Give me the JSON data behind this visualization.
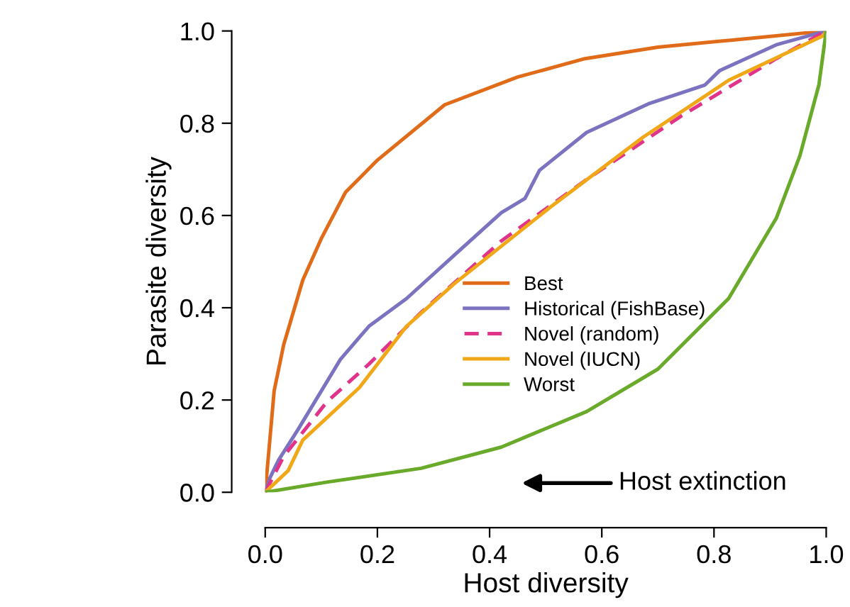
{
  "chart_data": {
    "type": "line",
    "xlabel": "Host diversity",
    "ylabel": "Parasite diversity",
    "xlim": [
      0,
      1
    ],
    "ylim": [
      0,
      1
    ],
    "xticks": [
      {
        "value": 0,
        "label": "0.0"
      },
      {
        "value": 0.2,
        "label": "0.2"
      },
      {
        "value": 0.4,
        "label": "0.4"
      },
      {
        "value": 0.6,
        "label": "0.6"
      },
      {
        "value": 0.8,
        "label": "0.8"
      },
      {
        "value": 1,
        "label": "1.0"
      }
    ],
    "yticks": [
      {
        "value": 0,
        "label": "0.0"
      },
      {
        "value": 0.2,
        "label": "0.2"
      },
      {
        "value": 0.4,
        "label": "0.4"
      },
      {
        "value": 0.6,
        "label": "0.6"
      },
      {
        "value": 0.8,
        "label": "0.8"
      },
      {
        "value": 1,
        "label": "1.0"
      }
    ],
    "grid": false,
    "legend": "center",
    "marker": "none",
    "annotations": [
      "Host extinction"
    ],
    "series": [
      {
        "name": "Best",
        "color": "#e06c1a",
        "x": [
          0,
          0.008,
          0.016,
          0.033,
          0.067,
          0.1,
          0.143,
          0.2,
          0.32,
          0.45,
          0.57,
          0.7,
          0.83,
          1
        ],
        "values": [
          0,
          0.11,
          0.22,
          0.32,
          0.46,
          0.55,
          0.65,
          0.72,
          0.84,
          0.9,
          0.94,
          0.965,
          0.98,
          1
        ]
      },
      {
        "name": "Historical (FishBase)",
        "color": "#7b72c0",
        "x": [
          0,
          0.008,
          0.024,
          0.058,
          0.134,
          0.185,
          0.252,
          0.337,
          0.421,
          0.463,
          0.489,
          0.573,
          0.683,
          0.784,
          0.81,
          0.911,
          1
        ],
        "values": [
          0,
          0.03,
          0.07,
          0.135,
          0.288,
          0.36,
          0.42,
          0.514,
          0.606,
          0.637,
          0.698,
          0.78,
          0.842,
          0.883,
          0.914,
          0.97,
          1
        ]
      },
      {
        "name": "Novel (random)",
        "color": "#e0338a",
        "line_style": "dashed",
        "x": [
          0,
          0.033,
          0.11,
          0.185,
          0.278,
          0.421,
          0.573,
          0.742,
          0.911,
          1
        ],
        "values": [
          0,
          0.078,
          0.196,
          0.278,
          0.39,
          0.545,
          0.678,
          0.816,
          0.94,
          1
        ]
      },
      {
        "name": "Novel (IUCN)",
        "color": "#f0a818",
        "x": [
          0,
          0.041,
          0.067,
          0.168,
          0.252,
          0.337,
          0.506,
          0.674,
          0.826,
          0.995,
          1
        ],
        "values": [
          0,
          0.047,
          0.113,
          0.227,
          0.36,
          0.452,
          0.616,
          0.77,
          0.893,
          0.99,
          1
        ]
      },
      {
        "name": "Worst",
        "color": "#6aaa2a",
        "x": [
          0,
          0.11,
          0.278,
          0.421,
          0.573,
          0.7,
          0.826,
          0.911,
          0.953,
          0.987,
          1
        ],
        "values": [
          0,
          0.022,
          0.052,
          0.098,
          0.175,
          0.267,
          0.42,
          0.594,
          0.729,
          0.883,
          1
        ]
      }
    ]
  }
}
